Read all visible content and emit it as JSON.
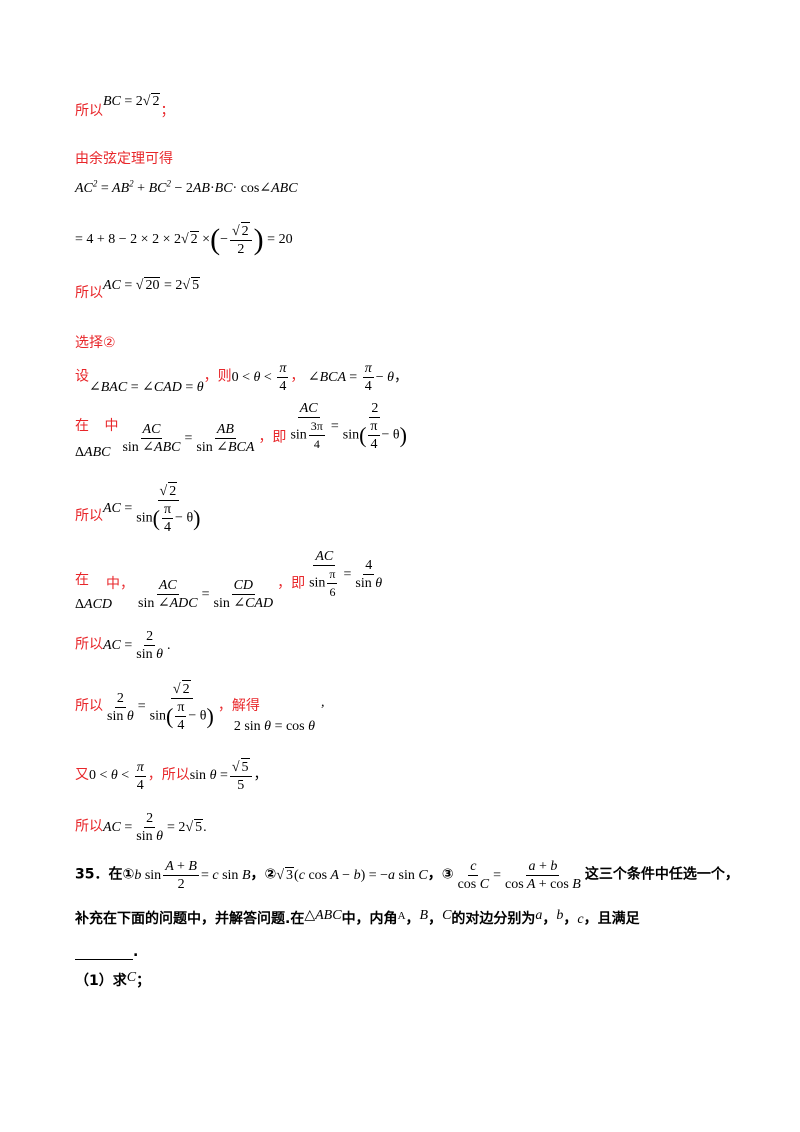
{
  "lines": {
    "l1_prefix": "所以",
    "l2": "由余弦定理可得",
    "l5_prefix": "所以",
    "l6": "选择②",
    "l7_prefix": "设",
    "l7_then": "，则",
    "l7_comma": "，",
    "l8_in": "在",
    "l8_mid": "中",
    "l8_ji": "，即",
    "l9_prefix": "所以",
    "l10_in": "在",
    "l10_mid": "中，",
    "l10_ji": "，即",
    "l11_prefix": "所以",
    "l12_prefix": "所以",
    "l12_jiede": "，解得",
    "l13_you": "又",
    "l13_suoyi": "，所以",
    "l14_prefix": "所以"
  },
  "problem": {
    "number": "35．",
    "zai": "在①",
    "two": "，②",
    "three": "，③",
    "tail": "这三个条件中任选一个，",
    "line2a": "补充在下面的问题中，并解答问题.在",
    "line2b": "中，内角",
    "line2c": "的对边分别为",
    "line2d": "，且满足",
    "sub1_label": "（1）求",
    "sub1_tail": "；"
  }
}
